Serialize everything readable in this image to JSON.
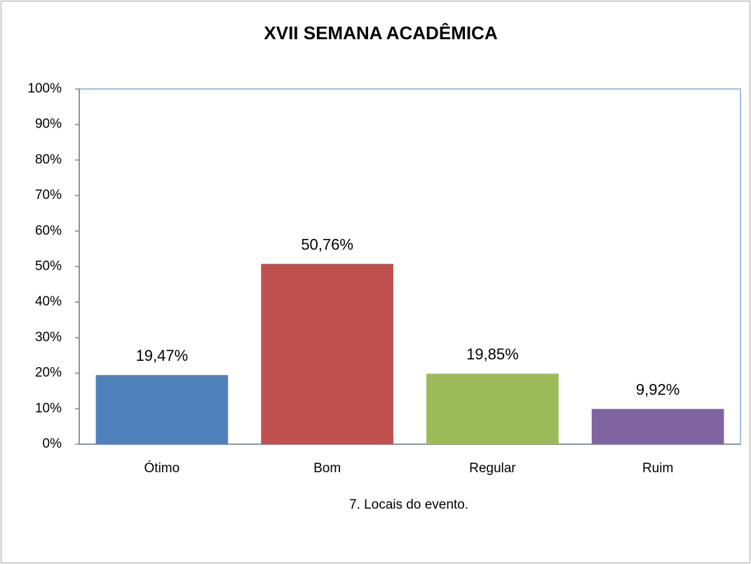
{
  "chart_data": {
    "type": "bar",
    "title": "XVII SEMANA ACADÊMICA",
    "x_label": "7. Locais do evento.",
    "categories": [
      "Ótimo",
      "Bom",
      "Regular",
      "Ruim"
    ],
    "values": [
      19.47,
      50.76,
      19.85,
      9.92
    ],
    "value_labels": [
      "19,47%",
      "50,76%",
      "19,85%",
      "9,92%"
    ],
    "colors": [
      "#4f81bd",
      "#c0504d",
      "#9bbb59",
      "#8064a2"
    ],
    "ylim": [
      0,
      100
    ],
    "yticks": [
      {
        "value": 0,
        "label": "0%"
      },
      {
        "value": 10,
        "label": "10%"
      },
      {
        "value": 20,
        "label": "20%"
      },
      {
        "value": 30,
        "label": "30%"
      },
      {
        "value": 40,
        "label": "40%"
      },
      {
        "value": 50,
        "label": "50%"
      },
      {
        "value": 60,
        "label": "60%"
      },
      {
        "value": 70,
        "label": "70%"
      },
      {
        "value": 80,
        "label": "80%"
      },
      {
        "value": 90,
        "label": "90%"
      },
      {
        "value": 100,
        "label": "100%"
      }
    ],
    "grid": false
  }
}
